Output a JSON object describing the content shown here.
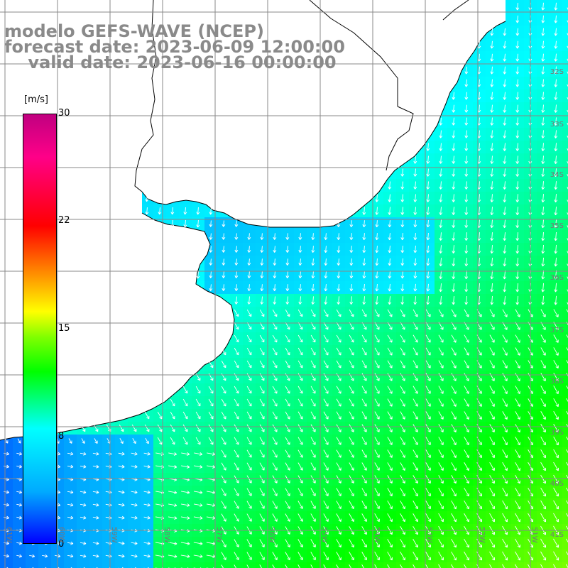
{
  "title": {
    "line1": "modelo GEFS-WAVE (NCEP)",
    "line2": "forecast date: 2023-06-09 12:00:00",
    "line3": "    valid date: 2023-06-16 00:00:00"
  },
  "colorbar": {
    "unit": "[m/s]",
    "ticks": [
      "30",
      "22",
      "15",
      "8",
      "0"
    ],
    "colors": [
      "#0000ff",
      "#00aaff",
      "#00ffff",
      "#00ff00",
      "#ffff00",
      "#ff7f00",
      "#ff0000",
      "#c00080"
    ]
  },
  "lon_labels": [
    "61W",
    "60W",
    "59W",
    "58W",
    "57W",
    "56W",
    "55W",
    "54W",
    "53W",
    "52W",
    "51W"
  ],
  "lat_labels": [
    "32S",
    "33S",
    "34S",
    "35S",
    "36S",
    "37S",
    "38S",
    "39S",
    "40S",
    "41S"
  ],
  "map": {
    "land_color": "#ffffff",
    "coast_color": "#000000",
    "grid_color": "#888888",
    "arrow_color": "#ffffff"
  }
}
